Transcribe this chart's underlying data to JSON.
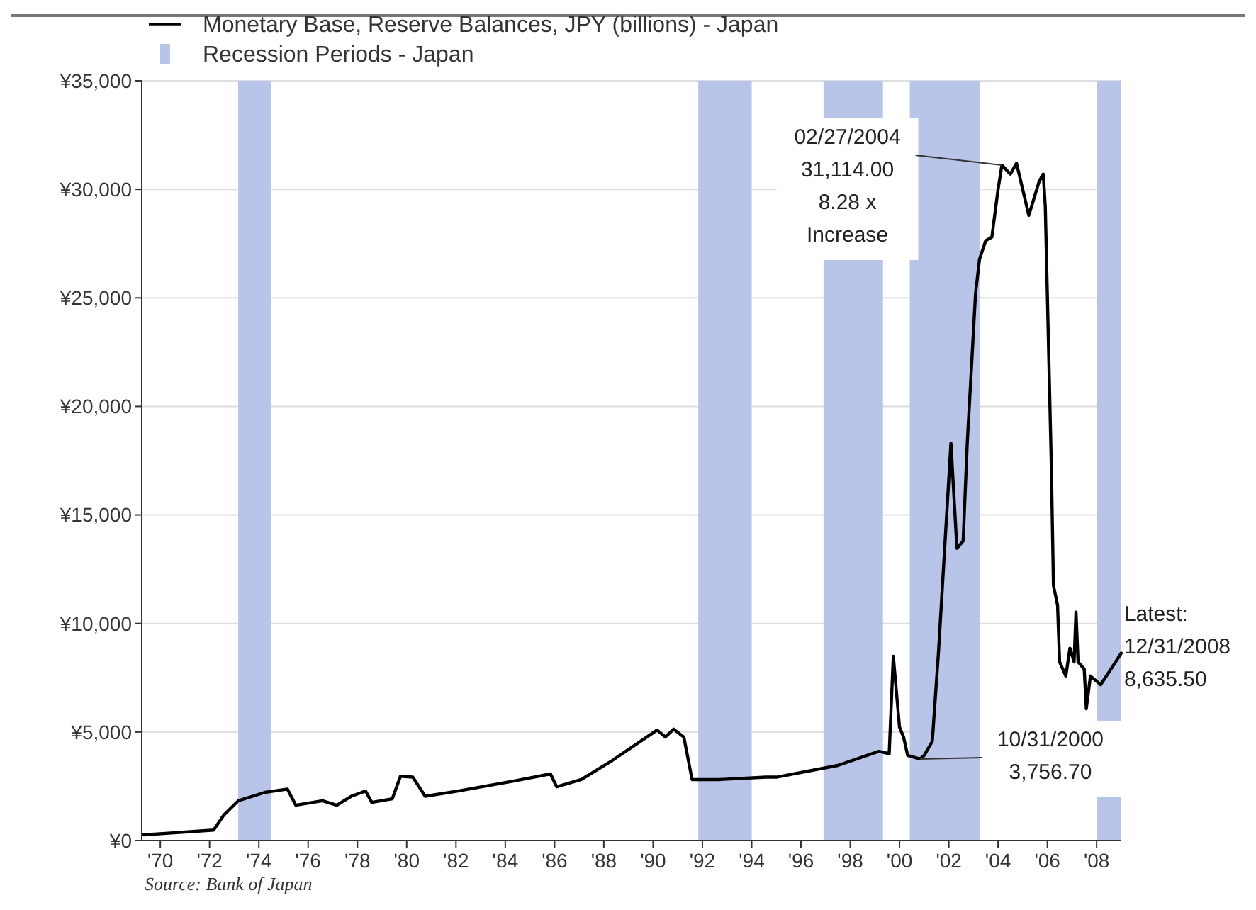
{
  "chart_data": {
    "type": "line",
    "x": [
      "1969-05",
      "1972-03",
      "1972-08",
      "1973-03",
      "1974-04",
      "1975-03",
      "1975-07",
      "1976-08",
      "1977-03",
      "1977-10",
      "1978-05",
      "1978-08",
      "1979-06",
      "1979-10",
      "1980-04",
      "1980-10",
      "1982-02",
      "1984-05",
      "1985-11",
      "1986-02",
      "1987-02",
      "1988-05",
      "1989-10",
      "1990-03",
      "1990-07",
      "1990-11",
      "1991-04",
      "1991-08",
      "1992-09",
      "1994-08",
      "1995-01",
      "1997-07",
      "1999-03",
      "1999-08",
      "1999-10",
      "2000-01",
      "2000-03",
      "2000-05",
      "2000-10-31",
      "2001-01",
      "2001-05",
      "2001-08",
      "2002-02",
      "2002-05",
      "2002-08",
      "2002-10",
      "2003-02",
      "2003-04",
      "2003-07",
      "2003-10",
      "2004-01",
      "2004-02-27",
      "2004-07",
      "2004-10",
      "2005-04",
      "2005-09",
      "2005-11",
      "2005-12",
      "2006-03",
      "2006-04",
      "2006-06",
      "2006-07",
      "2006-10",
      "2006-12",
      "2007-02",
      "2007-03",
      "2007-04",
      "2007-07",
      "2007-08",
      "2007-10",
      "2008-03",
      "2008-08",
      "2008-12-31"
    ],
    "series": [
      {
        "name": "Monetary Base, Reserve Balances, JPY (billions) - Japan",
        "color": "#000000",
        "values": [
          260,
          480,
          1180,
          1830,
          2220,
          2370,
          1630,
          1830,
          1630,
          2040,
          2280,
          1760,
          1920,
          2960,
          2920,
          2040,
          2280,
          2740,
          3070,
          2480,
          2810,
          3680,
          4770,
          5090,
          4770,
          5130,
          4770,
          2810,
          2810,
          2920,
          2920,
          3460,
          4110,
          4000,
          8490,
          5220,
          4770,
          3920,
          3756.7,
          3920,
          4570,
          8690,
          18300,
          13460,
          13800,
          18300,
          25200,
          26780,
          27630,
          27800,
          30000,
          31114,
          30700,
          31200,
          28800,
          30370,
          30700,
          29200,
          17200,
          11750,
          10840,
          8230,
          7580,
          8860,
          8230,
          10520,
          8230,
          7900,
          6070,
          7580,
          7180,
          7900,
          8635.5
        ]
      }
    ],
    "xlim": [
      "1969-04",
      "2009-01"
    ],
    "xticks": [
      {
        "value": "1970",
        "label": "'70"
      },
      {
        "value": "1972",
        "label": "'72"
      },
      {
        "value": "1974",
        "label": "'74"
      },
      {
        "value": "1976",
        "label": "'76"
      },
      {
        "value": "1978",
        "label": "'78"
      },
      {
        "value": "1980",
        "label": "'80"
      },
      {
        "value": "1982",
        "label": "'82"
      },
      {
        "value": "1984",
        "label": "'84"
      },
      {
        "value": "1986",
        "label": "'86"
      },
      {
        "value": "1988",
        "label": "'88"
      },
      {
        "value": "1990",
        "label": "'90"
      },
      {
        "value": "1992",
        "label": "'92"
      },
      {
        "value": "1994",
        "label": "'94"
      },
      {
        "value": "1996",
        "label": "'96"
      },
      {
        "value": "1998",
        "label": "'98"
      },
      {
        "value": "2000",
        "label": "'00"
      },
      {
        "value": "2002",
        "label": "'02"
      },
      {
        "value": "2004",
        "label": "'04"
      },
      {
        "value": "2006",
        "label": "'06"
      },
      {
        "value": "2008",
        "label": "'08"
      }
    ],
    "ylim": [
      0,
      35000
    ],
    "yticks": [
      {
        "value": 0,
        "label": "¥0"
      },
      {
        "value": 5000,
        "label": "¥5,000"
      },
      {
        "value": 10000,
        "label": "¥10,000"
      },
      {
        "value": 15000,
        "label": "¥15,000"
      },
      {
        "value": 20000,
        "label": "¥20,000"
      },
      {
        "value": 25000,
        "label": "¥25,000"
      },
      {
        "value": 30000,
        "label": "¥30,000"
      },
      {
        "value": 35000,
        "label": "¥35,000"
      }
    ],
    "bands": [
      {
        "axis": "x",
        "from": "1973-03",
        "to": "1974-07",
        "label": "Recession Periods - Japan",
        "color": "#b8c4e8"
      },
      {
        "axis": "x",
        "from": "1991-11",
        "to": "1994-01",
        "color": "#b8c4e8"
      },
      {
        "axis": "x",
        "from": "1996-12",
        "to": "1999-05",
        "color": "#b8c4e8"
      },
      {
        "axis": "x",
        "from": "2000-06",
        "to": "2003-04",
        "color": "#b8c4e8"
      },
      {
        "axis": "x",
        "from": "2008-01",
        "to": "2009-01",
        "color": "#b8c4e8"
      }
    ],
    "annotations": [
      {
        "text": "02/27/2004\n31,114.00\n8.28 x\nIncrease",
        "x": "2004-02-27",
        "y": 31114
      },
      {
        "text": "10/31/2000\n3,756.70",
        "x": "2000-10-31",
        "y": 3756.7
      },
      {
        "text": "Latest:\n12/31/2008\n8,635.50",
        "x": "2008-12-31",
        "y": 8635.5
      },
      "Source: Bank of Japan"
    ],
    "grid": "y",
    "legend": "top left",
    "marker": "none",
    "line_style": "solid"
  }
}
